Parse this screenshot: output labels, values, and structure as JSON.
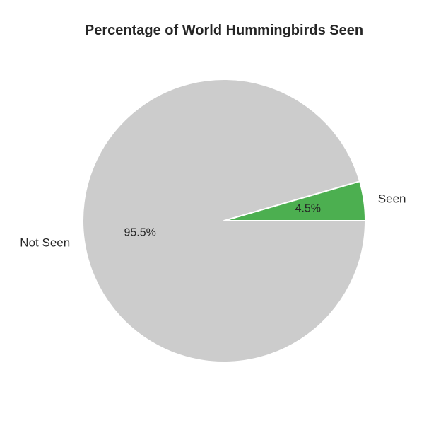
{
  "chart_data": {
    "type": "pie",
    "title": "Percentage of World Hummingbirds Seen",
    "slices": [
      {
        "label": "Seen",
        "value": 4.5,
        "value_label": "4.5%",
        "color": "#4caf50"
      },
      {
        "label": "Not Seen",
        "value": 95.5,
        "value_label": "95.5%",
        "color": "#cccccc"
      }
    ],
    "start_angle_deg": 0,
    "direction": "counterclockwise",
    "edge_color": "#ffffff",
    "legend": "none"
  }
}
